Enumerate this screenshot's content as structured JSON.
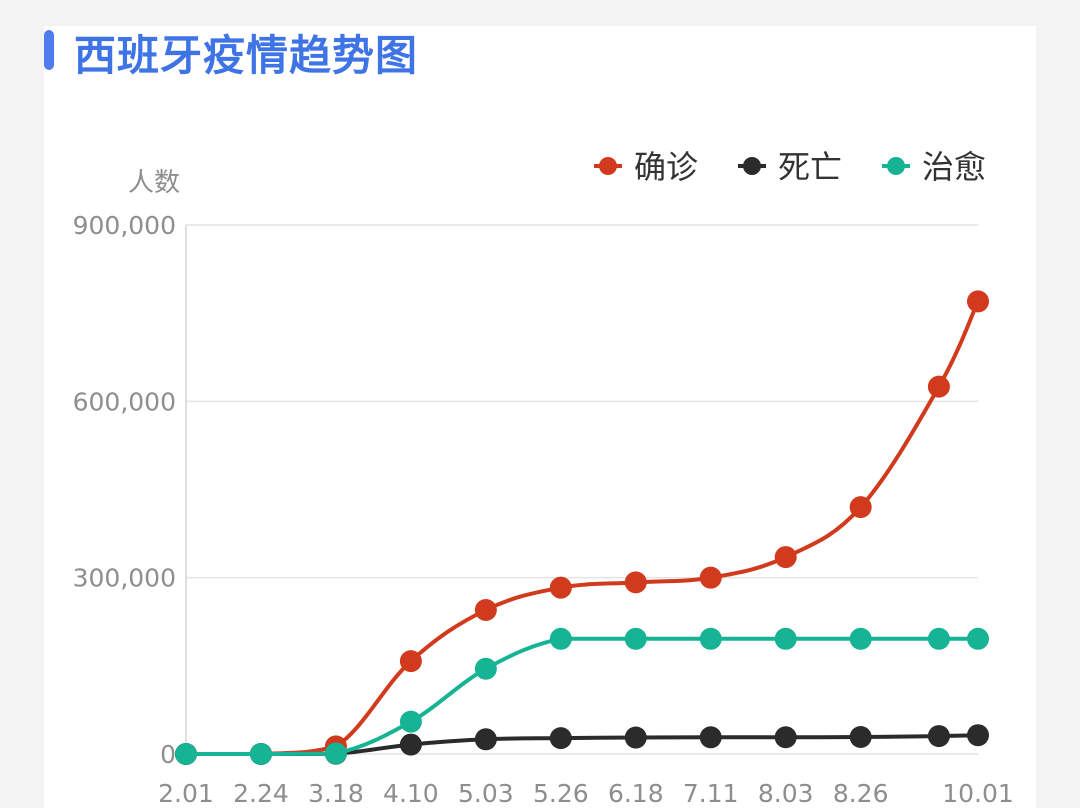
{
  "page": {
    "title": "西班牙疫情趋势图",
    "accent": "#3f74e6"
  },
  "chart_data": {
    "type": "line",
    "title": "西班牙疫情趋势图",
    "ylabel": "人数",
    "xlabel": "",
    "ylim": [
      0,
      900000
    ],
    "y_ticks": [
      0,
      300000,
      600000,
      900000
    ],
    "y_tick_labels": [
      "0",
      "300,000",
      "600,000",
      "900,000"
    ],
    "x_tick_labels": [
      "2.01",
      "2.24",
      "3.18",
      "4.10",
      "5.03",
      "5.26",
      "6.18",
      "7.11",
      "8.03",
      "8.26",
      "10.01"
    ],
    "legend_position": "top-right",
    "grid": true,
    "series": [
      {
        "name": "确诊",
        "color": "#d23a1e",
        "marker_x": [
          "2.01",
          "2.24",
          "3.18",
          "4.10",
          "5.03",
          "5.26",
          "6.18",
          "7.11",
          "8.03",
          "8.26",
          "9.19",
          "10.01"
        ],
        "marker_values": [
          0,
          0,
          13000,
          158000,
          245000,
          283000,
          292000,
          300000,
          335000,
          420000,
          625000,
          770000
        ]
      },
      {
        "name": "死亡",
        "color": "#2b2b2b",
        "marker_x": [
          "2.01",
          "2.24",
          "3.18",
          "4.10",
          "5.03",
          "5.26",
          "6.18",
          "7.11",
          "8.03",
          "8.26",
          "9.19",
          "10.01"
        ],
        "marker_values": [
          0,
          0,
          500,
          16000,
          25000,
          27000,
          28000,
          28400,
          28500,
          28900,
          30500,
          32000
        ]
      },
      {
        "name": "治愈",
        "color": "#16b394",
        "marker_x": [
          "2.01",
          "2.24",
          "3.18",
          "4.10",
          "5.03",
          "5.26",
          "6.18",
          "7.11",
          "8.03",
          "8.26",
          "9.19",
          "10.01"
        ],
        "marker_values": [
          0,
          0,
          1000,
          55000,
          145000,
          196000,
          196000,
          196000,
          196000,
          196000,
          196000,
          196000
        ]
      }
    ]
  }
}
